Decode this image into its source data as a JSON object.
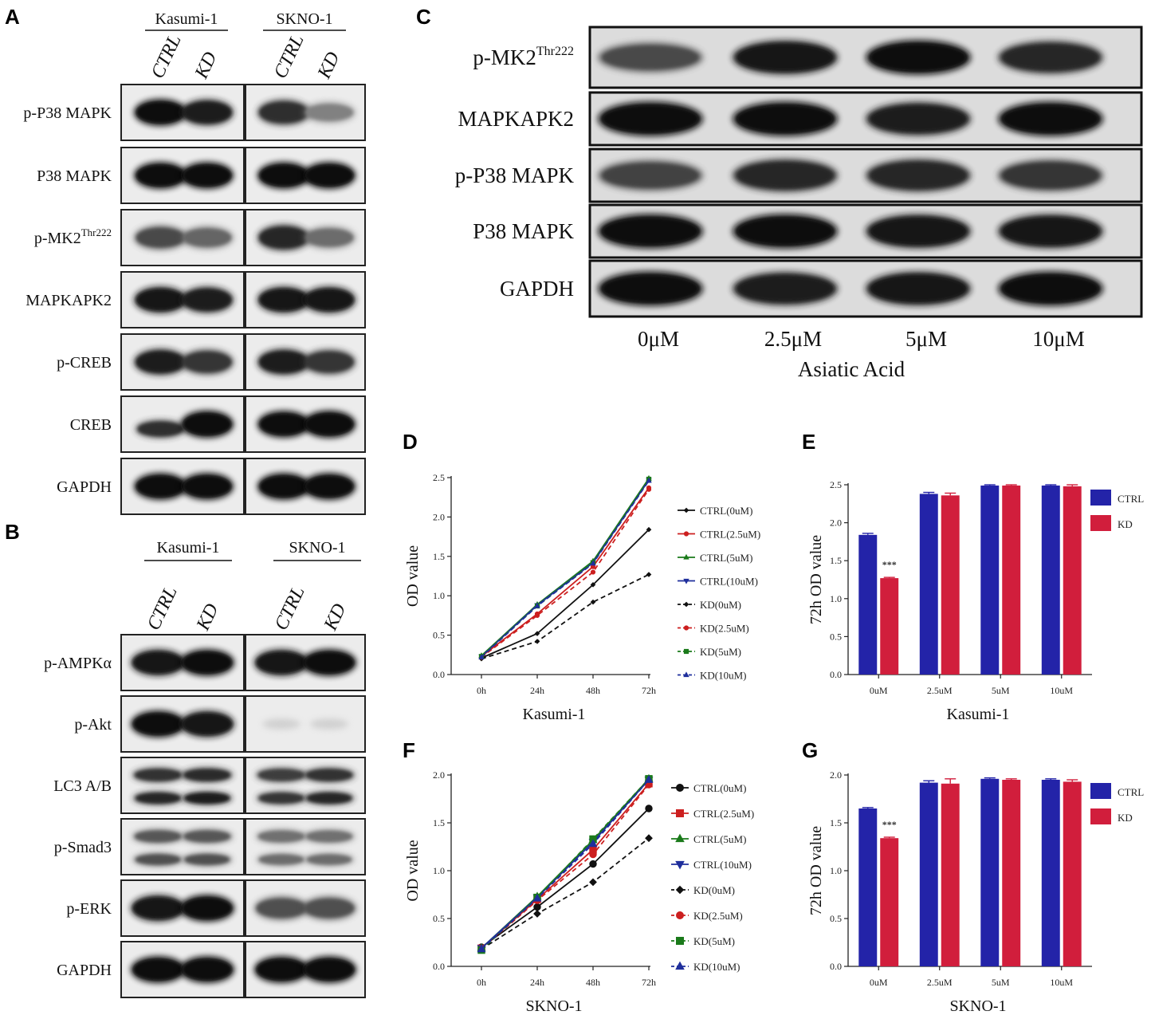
{
  "panels": {
    "A": {
      "letter": "A",
      "groups": [
        "Kasumi-1",
        "SKNO-1"
      ],
      "lanes": [
        "CTRL",
        "KD",
        "CTRL",
        "KD"
      ],
      "rows": [
        "p-P38 MAPK",
        "P38 MAPK",
        "p-MK2",
        "MAPKAPK2",
        "p-CREB",
        "CREB",
        "GAPDH"
      ],
      "mk2_superscript": "Thr222",
      "intensity": [
        [
          0.95,
          0.85,
          0.75,
          0.15
        ],
        [
          0.95,
          0.95,
          0.95,
          0.95
        ],
        [
          0.55,
          0.35,
          0.8,
          0.3
        ],
        [
          0.9,
          0.85,
          0.9,
          0.9
        ],
        [
          0.85,
          0.7,
          0.85,
          0.7
        ],
        [
          0.75,
          1.0,
          0.95,
          1.0
        ],
        [
          0.95,
          0.95,
          0.95,
          0.95
        ]
      ]
    },
    "B": {
      "letter": "B",
      "groups": [
        "Kasumi-1",
        "SKNO-1"
      ],
      "lanes": [
        "CTRL",
        "KD",
        "CTRL",
        "KD"
      ],
      "rows": [
        "p-AMPKα",
        "p-Akt",
        "LC3 A/B",
        "p-Smad3",
        "p-ERK",
        "GAPDH"
      ],
      "intensity": [
        [
          0.9,
          0.95,
          0.9,
          0.95
        ],
        [
          0.95,
          0.9,
          0.05,
          0.05
        ],
        [
          0.8,
          0.85,
          0.7,
          0.8
        ],
        [
          0.5,
          0.5,
          0.3,
          0.3
        ],
        [
          0.9,
          0.95,
          0.5,
          0.5
        ],
        [
          0.95,
          0.95,
          0.95,
          0.95
        ]
      ]
    },
    "C": {
      "letter": "C",
      "rows": [
        "p-MK2",
        "MAPKAPK2",
        "p-P38 MAPK",
        "P38 MAPK",
        "GAPDH"
      ],
      "mk2_superscript": "Thr222",
      "lanes": [
        "0μM",
        "2.5μM",
        "5μM",
        "10μM"
      ],
      "xlabel": "Asiatic Acid",
      "intensity": [
        [
          0.55,
          0.9,
          0.95,
          0.8
        ],
        [
          0.95,
          0.95,
          0.85,
          0.95
        ],
        [
          0.6,
          0.8,
          0.8,
          0.7
        ],
        [
          0.95,
          0.95,
          0.9,
          0.9
        ],
        [
          0.95,
          0.85,
          0.9,
          0.95
        ]
      ]
    }
  },
  "chart_data": [
    {
      "panel": "D",
      "type": "line",
      "x": [
        "0h",
        "24h",
        "48h",
        "72h"
      ],
      "xlabel": "Kasumi-1",
      "ylabel": "OD value",
      "ylim": [
        0,
        2.5
      ],
      "yticks": [
        "0.0",
        "0.5",
        "1.0",
        "1.5",
        "2.0",
        "2.5"
      ],
      "series": [
        {
          "name": "CTRL(0uM)",
          "color": "#111111",
          "dashed": false,
          "marker": "diamond",
          "values": [
            0.21,
            0.52,
            1.14,
            1.84
          ]
        },
        {
          "name": "CTRL(2.5uM)",
          "color": "#cc1f1f",
          "dashed": false,
          "marker": "circle",
          "values": [
            0.23,
            0.77,
            1.37,
            2.37
          ]
        },
        {
          "name": "CTRL(5uM)",
          "color": "#1a7a1a",
          "dashed": false,
          "marker": "triangle",
          "values": [
            0.24,
            0.89,
            1.44,
            2.49
          ]
        },
        {
          "name": "CTRL(10uM)",
          "color": "#1f2f9c",
          "dashed": false,
          "marker": "triangle-down",
          "values": [
            0.23,
            0.88,
            1.42,
            2.47
          ]
        },
        {
          "name": "KD(0uM)",
          "color": "#111111",
          "dashed": true,
          "marker": "diamond",
          "values": [
            0.2,
            0.42,
            0.92,
            1.27
          ]
        },
        {
          "name": "KD(2.5uM)",
          "color": "#cc1f1f",
          "dashed": true,
          "marker": "circle",
          "values": [
            0.22,
            0.75,
            1.3,
            2.35
          ]
        },
        {
          "name": "KD(5uM)",
          "color": "#1a7a1a",
          "dashed": true,
          "marker": "square",
          "values": [
            0.23,
            0.87,
            1.42,
            2.48
          ]
        },
        {
          "name": "KD(10uM)",
          "color": "#1f2f9c",
          "dashed": true,
          "marker": "triangle",
          "values": [
            0.22,
            0.87,
            1.41,
            2.46
          ]
        }
      ]
    },
    {
      "panel": "E",
      "type": "bar",
      "categories": [
        "0uM",
        "2.5uM",
        "5uM",
        "10uM"
      ],
      "xlabel": "Kasumi-1",
      "ylabel": "72h OD value",
      "ylim": [
        0,
        2.5
      ],
      "yticks": [
        "0.0",
        "0.5",
        "1.0",
        "1.5",
        "2.0",
        "2.5"
      ],
      "annotation": "***",
      "series": [
        {
          "name": "CTRL",
          "color": "#2323a8",
          "values": [
            1.84,
            2.38,
            2.49,
            2.49
          ],
          "errors": [
            0.02,
            0.02,
            0.01,
            0.01
          ]
        },
        {
          "name": "KD",
          "color": "#d11e3c",
          "values": [
            1.27,
            2.36,
            2.49,
            2.48
          ],
          "errors": [
            0.01,
            0.03,
            0.01,
            0.02
          ]
        }
      ]
    },
    {
      "panel": "F",
      "type": "line",
      "x": [
        "0h",
        "24h",
        "48h",
        "72h"
      ],
      "xlabel": "SKNO-1",
      "ylabel": "OD value",
      "ylim": [
        0,
        2.0
      ],
      "yticks": [
        "0.0",
        "0.5",
        "1.0",
        "1.5",
        "2.0"
      ],
      "series": [
        {
          "name": "CTRL(0uM)",
          "color": "#111111",
          "dashed": false,
          "marker": "circle",
          "values": [
            0.2,
            0.62,
            1.07,
            1.65
          ]
        },
        {
          "name": "CTRL(2.5uM)",
          "color": "#cc1f1f",
          "dashed": false,
          "marker": "square",
          "values": [
            0.19,
            0.7,
            1.22,
            1.91
          ]
        },
        {
          "name": "CTRL(5uM)",
          "color": "#1a7a1a",
          "dashed": false,
          "marker": "triangle",
          "values": [
            0.19,
            0.73,
            1.32,
            1.96
          ]
        },
        {
          "name": "CTRL(10uM)",
          "color": "#1f2f9c",
          "dashed": false,
          "marker": "triangle-down",
          "values": [
            0.19,
            0.72,
            1.3,
            1.95
          ]
        },
        {
          "name": "KD(0uM)",
          "color": "#111111",
          "dashed": true,
          "marker": "diamond",
          "values": [
            0.18,
            0.55,
            0.88,
            1.34
          ]
        },
        {
          "name": "KD(2.5uM)",
          "color": "#cc1f1f",
          "dashed": true,
          "marker": "circle",
          "values": [
            0.18,
            0.69,
            1.17,
            1.9
          ]
        },
        {
          "name": "KD(5uM)",
          "color": "#1a7a1a",
          "dashed": true,
          "marker": "square",
          "values": [
            0.17,
            0.72,
            1.33,
            1.96
          ]
        },
        {
          "name": "KD(10uM)",
          "color": "#1f2f9c",
          "dashed": true,
          "marker": "triangle",
          "values": [
            0.18,
            0.71,
            1.28,
            1.95
          ]
        }
      ]
    },
    {
      "panel": "G",
      "type": "bar",
      "categories": [
        "0uM",
        "2.5uM",
        "5uM",
        "10uM"
      ],
      "xlabel": "SKNO-1",
      "ylabel": "72h OD value",
      "ylim": [
        0,
        2.0
      ],
      "yticks": [
        "0.0",
        "0.5",
        "1.0",
        "1.5",
        "2.0"
      ],
      "annotation": "***",
      "series": [
        {
          "name": "CTRL",
          "color": "#2323a8",
          "values": [
            1.65,
            1.92,
            1.96,
            1.95
          ],
          "errors": [
            0.01,
            0.02,
            0.01,
            0.01
          ]
        },
        {
          "name": "KD",
          "color": "#d11e3c",
          "values": [
            1.34,
            1.91,
            1.95,
            1.93
          ],
          "errors": [
            0.01,
            0.05,
            0.01,
            0.02
          ]
        }
      ]
    }
  ]
}
